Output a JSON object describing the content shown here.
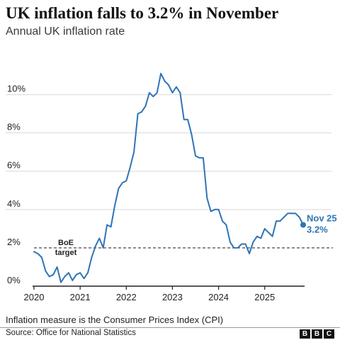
{
  "title": "UK inflation falls to 3.2% in November",
  "subtitle": "Annual UK inflation rate",
  "footnote": "Inflation measure is the Consumer Prices Index (CPI)",
  "source": "Source: Office for National Statistics",
  "logo_letters": [
    "B",
    "B",
    "C"
  ],
  "colors": {
    "line": "#2e74b5",
    "axis": "#222222",
    "grid": "#d9d9d9",
    "target": "#333333"
  },
  "chart_data": {
    "type": "line",
    "title": "UK inflation falls to 3.2% in November",
    "subtitle": "Annual UK inflation rate",
    "xlabel": "",
    "ylabel": "",
    "xlim": [
      "2020-01",
      "2025-11"
    ],
    "ylim": [
      0,
      11.5
    ],
    "y_ticks": [
      0,
      2,
      4,
      6,
      8,
      10
    ],
    "y_tick_labels": [
      "0%",
      "2%",
      "4%",
      "6%",
      "8%",
      "10%"
    ],
    "x_ticks": [
      "2020-01",
      "2021-01",
      "2022-01",
      "2023-01",
      "2024-01",
      "2025-01"
    ],
    "x_tick_labels": [
      "2020",
      "2021",
      "2022",
      "2023",
      "2024",
      "2025"
    ],
    "grid": "horizontal",
    "reference_line": {
      "value": 2,
      "label_line1": "BoE",
      "label_line2": "target",
      "style": "dashed"
    },
    "end_label": {
      "month": "Nov 25",
      "value": "3.2%"
    },
    "series": [
      {
        "x": [
          "2020-01",
          "2020-02",
          "2020-03",
          "2020-04",
          "2020-05",
          "2020-06",
          "2020-07",
          "2020-08",
          "2020-09",
          "2020-10",
          "2020-11",
          "2020-12",
          "2021-01",
          "2021-02",
          "2021-03",
          "2021-04",
          "2021-05",
          "2021-06",
          "2021-07",
          "2021-08",
          "2021-09",
          "2021-10",
          "2021-11",
          "2021-12",
          "2022-01",
          "2022-02",
          "2022-03",
          "2022-04",
          "2022-05",
          "2022-06",
          "2022-07",
          "2022-08",
          "2022-09",
          "2022-10",
          "2022-11",
          "2022-12",
          "2023-01",
          "2023-02",
          "2023-03",
          "2023-04",
          "2023-05",
          "2023-06",
          "2023-07",
          "2023-08",
          "2023-09",
          "2023-10",
          "2023-11",
          "2023-12",
          "2024-01",
          "2024-02",
          "2024-03",
          "2024-04",
          "2024-05",
          "2024-06",
          "2024-07",
          "2024-08",
          "2024-09",
          "2024-10",
          "2024-11",
          "2024-12",
          "2025-01",
          "2025-02",
          "2025-03",
          "2025-04",
          "2025-05",
          "2025-06",
          "2025-07",
          "2025-08",
          "2025-09",
          "2025-10",
          "2025-11"
        ],
        "y": [
          1.8,
          1.7,
          1.5,
          0.8,
          0.5,
          0.6,
          1.0,
          0.2,
          0.5,
          0.7,
          0.3,
          0.6,
          0.7,
          0.4,
          0.7,
          1.5,
          2.1,
          2.5,
          2.0,
          3.2,
          3.1,
          4.2,
          5.1,
          5.4,
          5.5,
          6.2,
          7.0,
          9.0,
          9.1,
          9.4,
          10.1,
          9.9,
          10.1,
          11.1,
          10.7,
          10.5,
          10.1,
          10.4,
          10.1,
          8.7,
          8.7,
          7.9,
          6.8,
          6.7,
          6.7,
          4.6,
          3.9,
          4.0,
          4.0,
          3.4,
          3.2,
          2.3,
          2.0,
          2.0,
          2.2,
          2.2,
          1.7,
          2.3,
          2.6,
          2.5,
          3.0,
          2.8,
          2.6,
          3.4,
          3.4,
          3.6,
          3.8,
          3.8,
          3.8,
          3.6,
          3.2
        ]
      }
    ]
  }
}
